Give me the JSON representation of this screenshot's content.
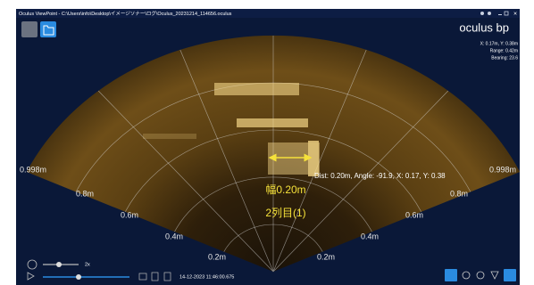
{
  "window": {
    "title": "Oculus ViewPoint - C:\\Users\\info\\Desktop\\イメージソナー\\ログ\\Oculus_20231214_114656.oculus",
    "logo": "oculus bp"
  },
  "cursor_info": [
    "X: 0.17m, Y: 0.38m",
    "Range: 0.42m",
    "Bearing: 23.6"
  ],
  "range_labels": {
    "left": [
      "0.998m",
      "0.8m",
      "0.6m",
      "0.4m",
      "0.2m"
    ],
    "right": [
      "0.998m",
      "0.8m",
      "0.6m",
      "0.4m",
      "0.2m"
    ]
  },
  "measurement": {
    "readout": "Dist: 0.20m, Angle: -91.9, X: 0.17, Y: 0.38",
    "width_note": "幅0.20m",
    "row_note": "2列目(1)"
  },
  "playback": {
    "speed": "2x",
    "timestamp": "14-12-2023 11:46:00.675"
  }
}
